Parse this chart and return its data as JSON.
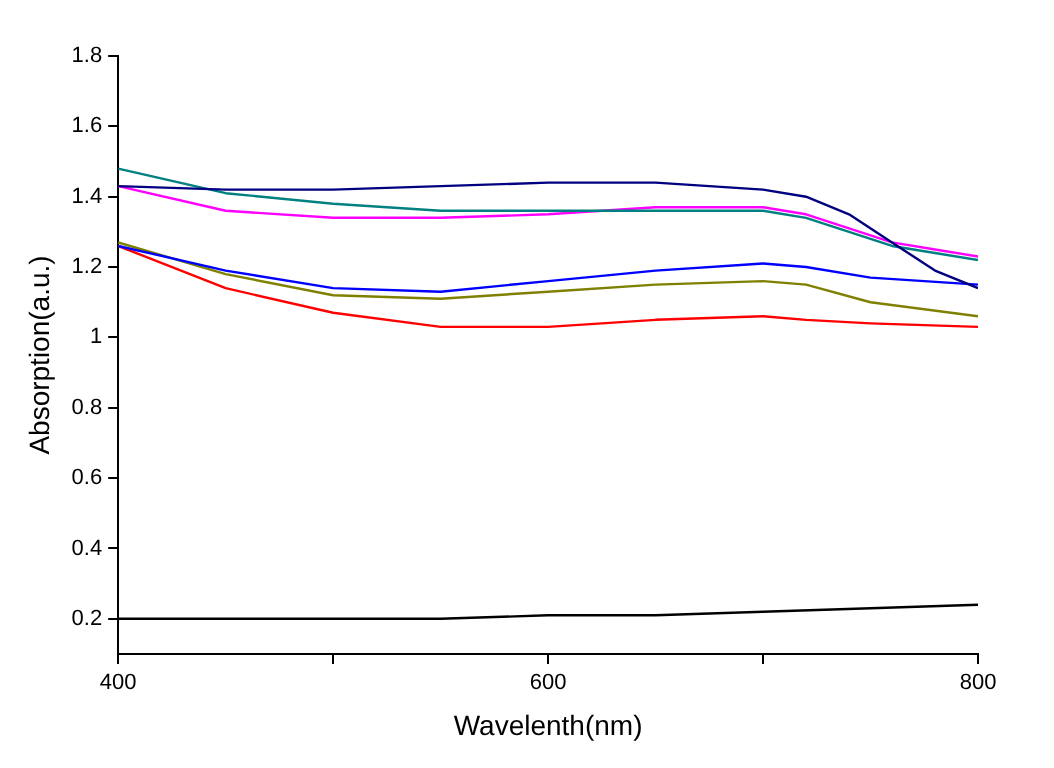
{
  "chart_data": {
    "type": "line",
    "xlabel": "Wavelenth(nm)",
    "ylabel": "Absorption(a.u.)",
    "xlim": [
      400,
      800
    ],
    "xticks": [
      400,
      {
        "value": 500,
        "label": null
      },
      600,
      {
        "value": 700,
        "label": null
      },
      800
    ],
    "ylim": [
      0.1,
      1.8
    ],
    "yticks": [
      0.2,
      0.4,
      0.6,
      0.8,
      1.0,
      1.2,
      1.4,
      1.6,
      1.8
    ],
    "grid": false,
    "legend": false,
    "marker": "none",
    "line_style": "solid",
    "series": [
      {
        "color": "#000080",
        "x": [
          400,
          450,
          500,
          550,
          600,
          650,
          700,
          720,
          740,
          760,
          780,
          800
        ],
        "values": [
          1.43,
          1.42,
          1.42,
          1.43,
          1.44,
          1.44,
          1.42,
          1.4,
          1.35,
          1.27,
          1.19,
          1.14
        ]
      },
      {
        "color": "#008080",
        "x": [
          400,
          450,
          500,
          550,
          600,
          650,
          700,
          720,
          740,
          760,
          780,
          800
        ],
        "values": [
          1.48,
          1.41,
          1.38,
          1.36,
          1.36,
          1.36,
          1.36,
          1.34,
          1.3,
          1.26,
          1.24,
          1.22
        ]
      },
      {
        "color": "#ff00ff",
        "x": [
          400,
          450,
          500,
          550,
          600,
          650,
          700,
          720,
          740,
          760,
          780,
          800
        ],
        "values": [
          1.43,
          1.36,
          1.34,
          1.34,
          1.35,
          1.37,
          1.37,
          1.35,
          1.31,
          1.27,
          1.25,
          1.23
        ]
      },
      {
        "color": "#0000ff",
        "x": [
          400,
          450,
          500,
          550,
          600,
          650,
          700,
          720,
          750,
          800
        ],
        "values": [
          1.26,
          1.19,
          1.14,
          1.13,
          1.16,
          1.19,
          1.21,
          1.2,
          1.17,
          1.15
        ]
      },
      {
        "color": "#808000",
        "x": [
          400,
          450,
          500,
          550,
          600,
          650,
          700,
          720,
          750,
          800
        ],
        "values": [
          1.27,
          1.18,
          1.12,
          1.11,
          1.13,
          1.15,
          1.16,
          1.15,
          1.1,
          1.06
        ]
      },
      {
        "color": "#ff0000",
        "x": [
          400,
          450,
          500,
          550,
          600,
          650,
          700,
          720,
          750,
          800
        ],
        "values": [
          1.26,
          1.14,
          1.07,
          1.03,
          1.03,
          1.05,
          1.06,
          1.05,
          1.04,
          1.03
        ]
      },
      {
        "color": "#000000",
        "x": [
          400,
          550,
          600,
          650,
          700,
          750,
          800
        ],
        "values": [
          0.2,
          0.2,
          0.21,
          0.21,
          0.22,
          0.23,
          0.24
        ]
      }
    ]
  }
}
